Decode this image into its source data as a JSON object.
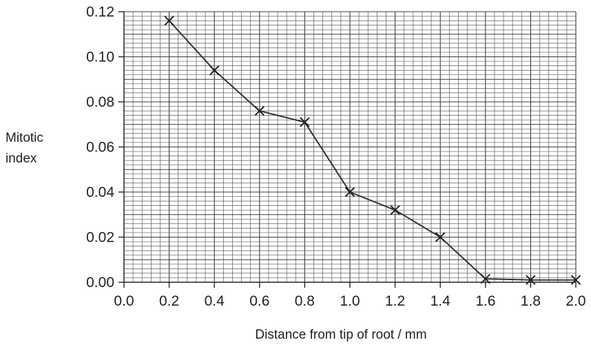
{
  "chart_data": {
    "type": "line",
    "xlabel": "Distance from tip of root / mm",
    "ylabel_lines": [
      "Mitotic",
      "index"
    ],
    "xlim": [
      0.0,
      2.0
    ],
    "ylim": [
      0.0,
      0.12
    ],
    "grid": true,
    "x_ticks": [
      0.0,
      0.2,
      0.4,
      0.6,
      0.8,
      1.0,
      1.2,
      1.4,
      1.6,
      1.8,
      2.0
    ],
    "x_tick_labels": [
      "0.0",
      "0.2",
      "0.4",
      "0.6",
      "0.8",
      "1.0",
      "1.2",
      "1.4",
      "1.6",
      "1.8",
      "2.0"
    ],
    "y_ticks": [
      0.0,
      0.02,
      0.04,
      0.06,
      0.08,
      0.1,
      0.12
    ],
    "y_tick_labels": [
      "0.00",
      "0.02",
      "0.04",
      "0.06",
      "0.08",
      "0.10",
      "0.12"
    ],
    "marker": "x",
    "series": [
      {
        "x": [
          0.2,
          0.4,
          0.6,
          0.8,
          1.0,
          1.2,
          1.4,
          1.6,
          1.8,
          2.0
        ],
        "y": [
          0.116,
          0.094,
          0.076,
          0.071,
          0.04,
          0.032,
          0.02,
          0.0015,
          0.001,
          0.001
        ]
      }
    ]
  }
}
